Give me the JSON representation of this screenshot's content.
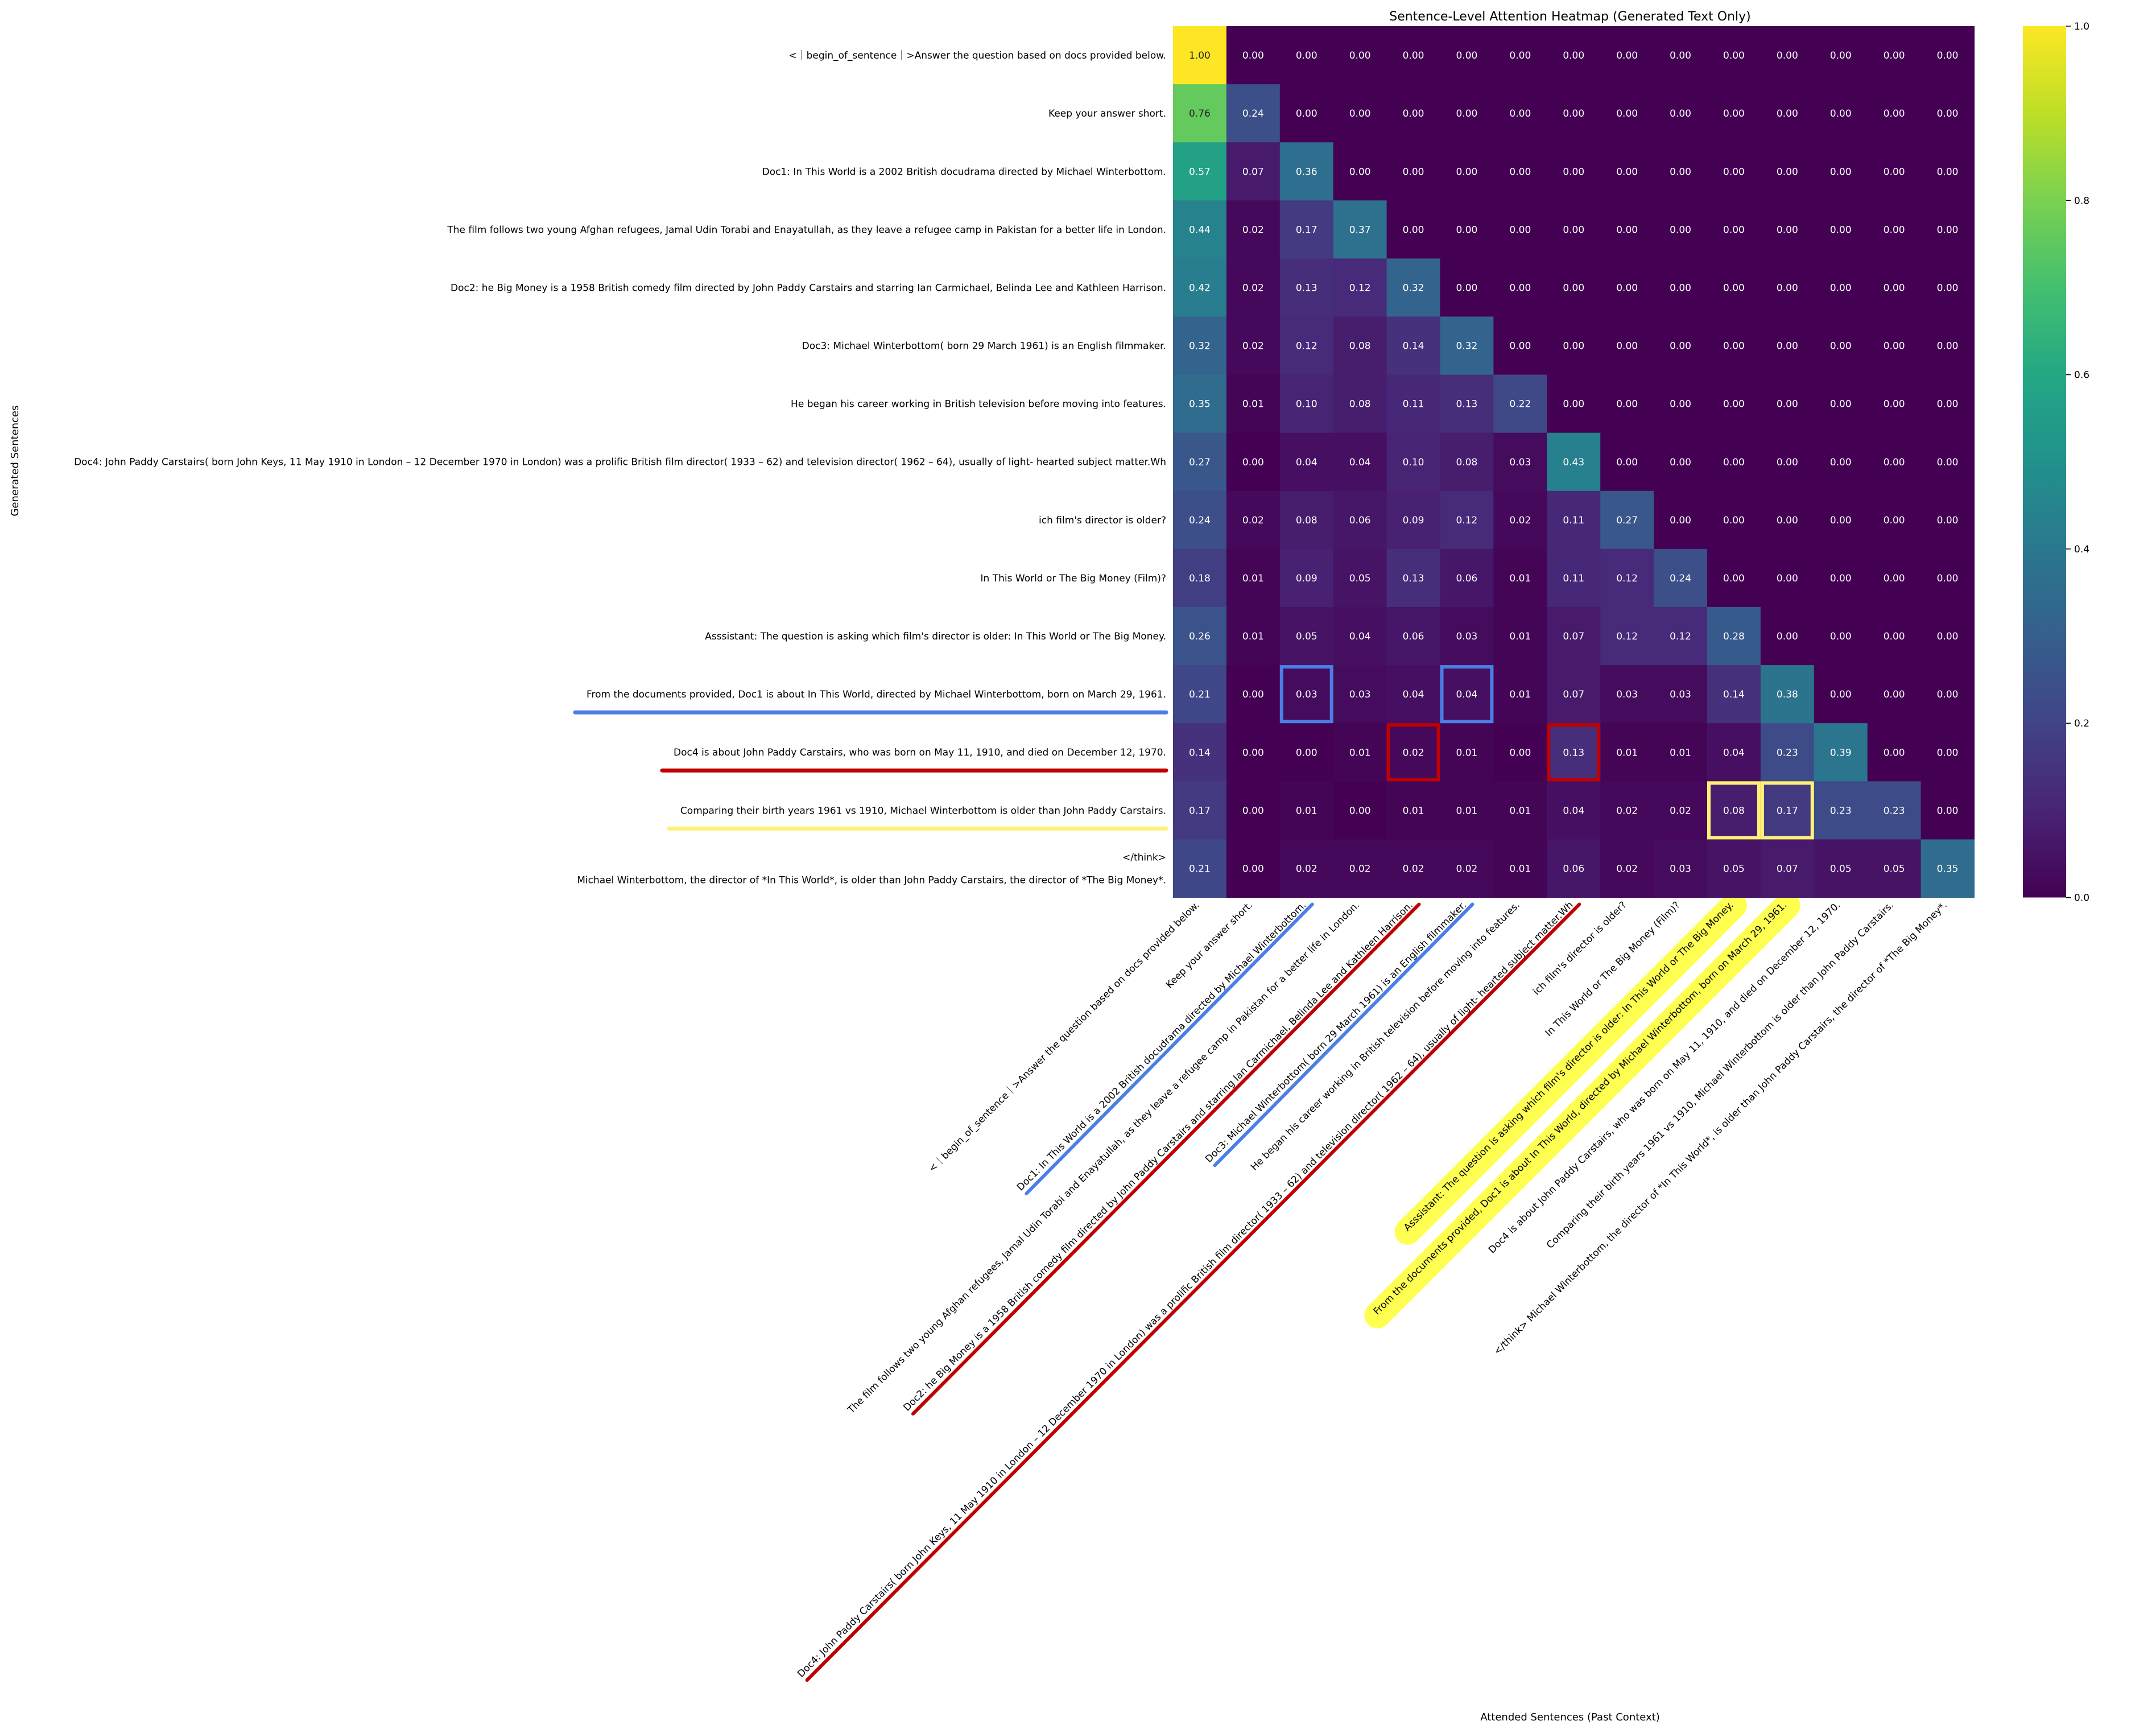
{
  "chart_data": {
    "type": "heatmap",
    "title": "Sentence-Level Attention Heatmap (Generated Text Only)",
    "xlabel": "Attended Sentences (Past Context)",
    "ylabel": "Generated Sentences",
    "row_labels": [
      "<｜begin_of_sentence｜>Answer the question based on docs provided below.",
      "Keep your answer short.",
      "Doc1: In This World is a 2002 British docudrama directed by Michael Winterbottom.",
      "The film follows two young Afghan refugees, Jamal Udin Torabi and Enayatullah, as they leave a refugee camp in Pakistan for a better life in London.",
      "Doc2: he Big Money is a 1958 British comedy film directed by John Paddy Carstairs and starring Ian Carmichael, Belinda Lee and Kathleen Harrison.",
      "Doc3: Michael Winterbottom( born 29 March 1961) is an English filmmaker.",
      "He began his career working in British television before moving into features.",
      "Doc4: John Paddy Carstairs( born John Keys, 11 May 1910 in London – 12 December 1970 in London) was a prolific British film director( 1933 – 62) and television director( 1962 – 64), usually of light- hearted subject matter.Wh",
      "ich film's director is older?",
      "In This World or The Big Money (Film)?",
      "Asssistant:  The question is asking which film's director is older: In This World or The Big Money.",
      "From the documents provided, Doc1 is about In This World, directed by Michael Winterbottom, born on March 29, 1961.",
      "Doc4 is about John Paddy Carstairs, who was born on May 11, 1910, and died on December 12, 1970.",
      "Comparing their birth years 1961 vs 1910, Michael Winterbottom is older than John Paddy Carstairs.",
      "</think>\nMichael Winterbottom, the director of *In This World*, is older than John Paddy Carstairs, the director of *The Big Money*."
    ],
    "col_labels": [
      "<｜begin_of_sentence｜>Answer the question based on docs provided below.",
      "Keep your answer short.",
      "Doc1: In This World is a 2002 British docudrama directed by Michael Winterbottom.",
      "The film follows two young Afghan refugees, Jamal Udin Torabi and Enayatullah, as they leave a refugee camp in Pakistan for a better life in London.",
      "Doc2: he Big Money is a 1958 British comedy film directed by John Paddy Carstairs and starring Ian Carmichael, Belinda Lee and Kathleen Harrison.",
      "Doc3: Michael Winterbottom( born 29 March 1961) is an English filmmaker.",
      "He began his career working in British television before moving into features.",
      "Doc4: John Paddy Carstairs( born John Keys, 11 May 1910 in London – 12 December 1970 in London) was a prolific British film director( 1933 – 62) and television director( 1962 – 64), usually of light- hearted subject matter.Wh",
      "ich film's director is older?",
      "In This World or The Big Money (Film)?",
      "Asssistant:  The question is asking which film's director is older: In This World or The Big Money.",
      "From the documents provided, Doc1 is about In This World, directed by Michael Winterbottom, born on March 29, 1961.",
      "Doc4 is about John Paddy Carstairs, who was born on May 11, 1910, and died on December 12, 1970.",
      "Comparing their birth years 1961 vs 1910, Michael Winterbottom is older than John Paddy Carstairs.",
      "</think>\nMichael Winterbottom, the director of *In This World*, is older than John Paddy Carstairs, the director of *The Big Money*."
    ],
    "values": [
      [
        1.0,
        0.0,
        0.0,
        0.0,
        0.0,
        0.0,
        0.0,
        0.0,
        0.0,
        0.0,
        0.0,
        0.0,
        0.0,
        0.0,
        0.0
      ],
      [
        0.76,
        0.24,
        0.0,
        0.0,
        0.0,
        0.0,
        0.0,
        0.0,
        0.0,
        0.0,
        0.0,
        0.0,
        0.0,
        0.0,
        0.0
      ],
      [
        0.57,
        0.07,
        0.36,
        0.0,
        0.0,
        0.0,
        0.0,
        0.0,
        0.0,
        0.0,
        0.0,
        0.0,
        0.0,
        0.0,
        0.0
      ],
      [
        0.44,
        0.02,
        0.17,
        0.37,
        0.0,
        0.0,
        0.0,
        0.0,
        0.0,
        0.0,
        0.0,
        0.0,
        0.0,
        0.0,
        0.0
      ],
      [
        0.42,
        0.02,
        0.13,
        0.12,
        0.32,
        0.0,
        0.0,
        0.0,
        0.0,
        0.0,
        0.0,
        0.0,
        0.0,
        0.0,
        0.0
      ],
      [
        0.32,
        0.02,
        0.12,
        0.08,
        0.14,
        0.32,
        0.0,
        0.0,
        0.0,
        0.0,
        0.0,
        0.0,
        0.0,
        0.0,
        0.0
      ],
      [
        0.35,
        0.01,
        0.1,
        0.08,
        0.11,
        0.13,
        0.22,
        0.0,
        0.0,
        0.0,
        0.0,
        0.0,
        0.0,
        0.0,
        0.0
      ],
      [
        0.27,
        0.0,
        0.04,
        0.04,
        0.1,
        0.08,
        0.03,
        0.43,
        0.0,
        0.0,
        0.0,
        0.0,
        0.0,
        0.0,
        0.0
      ],
      [
        0.24,
        0.02,
        0.08,
        0.06,
        0.09,
        0.12,
        0.02,
        0.11,
        0.27,
        0.0,
        0.0,
        0.0,
        0.0,
        0.0,
        0.0
      ],
      [
        0.18,
        0.01,
        0.09,
        0.05,
        0.13,
        0.06,
        0.01,
        0.11,
        0.12,
        0.24,
        0.0,
        0.0,
        0.0,
        0.0,
        0.0
      ],
      [
        0.26,
        0.01,
        0.05,
        0.04,
        0.06,
        0.03,
        0.01,
        0.07,
        0.12,
        0.12,
        0.28,
        0.0,
        0.0,
        0.0,
        0.0
      ],
      [
        0.21,
        0.0,
        0.03,
        0.03,
        0.04,
        0.04,
        0.01,
        0.07,
        0.03,
        0.03,
        0.14,
        0.38,
        0.0,
        0.0,
        0.0
      ],
      [
        0.14,
        0.0,
        0.0,
        0.01,
        0.02,
        0.01,
        0.0,
        0.13,
        0.01,
        0.01,
        0.04,
        0.23,
        0.39,
        0.0,
        0.0
      ],
      [
        0.17,
        0.0,
        0.01,
        0.0,
        0.01,
        0.01,
        0.01,
        0.04,
        0.02,
        0.02,
        0.08,
        0.17,
        0.23,
        0.23,
        0.0
      ],
      [
        0.21,
        0.0,
        0.02,
        0.02,
        0.02,
        0.02,
        0.01,
        0.06,
        0.02,
        0.03,
        0.05,
        0.07,
        0.05,
        0.05,
        0.35
      ]
    ],
    "colorbar": {
      "range": [
        0.0,
        1.0
      ],
      "ticks": [
        "0.0",
        "0.2",
        "0.4",
        "0.6",
        "0.8",
        "1.0"
      ],
      "colormap": "viridis"
    },
    "annotations": {
      "boxed_cells": [
        {
          "row": 11,
          "col": 2,
          "color": "#4a7fe6"
        },
        {
          "row": 11,
          "col": 5,
          "color": "#4a7fe6"
        },
        {
          "row": 12,
          "col": 4,
          "color": "#c00000"
        },
        {
          "row": 12,
          "col": 7,
          "color": "#c00000"
        },
        {
          "row": 13,
          "col": 10,
          "color": "#fff176"
        },
        {
          "row": 13,
          "col": 11,
          "color": "#fff176"
        }
      ],
      "row_underlines": [
        {
          "row": 11,
          "color": "#4a7fe6"
        },
        {
          "row": 12,
          "color": "#c00000"
        },
        {
          "row": 13,
          "color": "#fff176"
        }
      ],
      "col_underlines": [
        {
          "col": 2,
          "color": "#4a7fe6",
          "style": "line"
        },
        {
          "col": 5,
          "color": "#4a7fe6",
          "style": "line"
        },
        {
          "col": 4,
          "color": "#c00000",
          "style": "line"
        },
        {
          "col": 7,
          "color": "#c00000",
          "style": "line"
        },
        {
          "col": 10,
          "color": "#ffff33",
          "style": "highlight"
        },
        {
          "col": 11,
          "color": "#ffff33",
          "style": "highlight"
        }
      ]
    }
  }
}
